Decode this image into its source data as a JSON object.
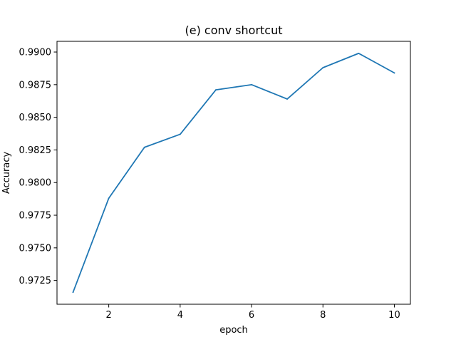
{
  "chart_data": {
    "type": "line",
    "title": "(e) conv shortcut",
    "xlabel": "epoch",
    "ylabel": "Accuracy",
    "x": [
      1,
      2,
      3,
      4,
      5,
      6,
      7,
      8,
      9,
      10
    ],
    "series": [
      {
        "values": [
          0.9716,
          0.9788,
          0.9827,
          0.9837,
          0.9871,
          0.9875,
          0.9864,
          0.9888,
          0.9899,
          0.9884
        ],
        "color": "#1f77b4"
      }
    ],
    "xlim": [
      0.55,
      10.45
    ],
    "ylim": [
      0.97068,
      0.99082
    ],
    "xticks": [
      2,
      4,
      6,
      8,
      10
    ],
    "xtick_labels": [
      "2",
      "4",
      "6",
      "8",
      "10"
    ],
    "yticks": [
      0.9725,
      0.975,
      0.9775,
      0.98,
      0.9825,
      0.985,
      0.9875,
      0.99
    ],
    "ytick_labels": [
      "0.9725",
      "0.9750",
      "0.9775",
      "0.9800",
      "0.9825",
      "0.9850",
      "0.9875",
      "0.9900"
    ],
    "grid": false,
    "legend": false
  }
}
